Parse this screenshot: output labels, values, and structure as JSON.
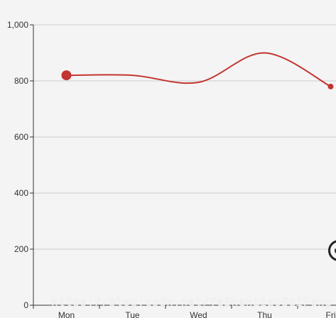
{
  "chart_data": {
    "type": "line",
    "categories": [
      "Mon",
      "Tue",
      "Wed",
      "Thu",
      "Fri"
    ],
    "series": [
      {
        "values": [
          820,
          820,
          795,
          900,
          780
        ],
        "color": "#c23531"
      }
    ],
    "y_ticks": [
      "0",
      "200",
      "400",
      "600",
      "800",
      "1,000"
    ],
    "ylim": [
      0,
      1000
    ],
    "smooth": true,
    "grid": true,
    "title": "",
    "xlabel": "",
    "ylabel": ""
  },
  "colors": {
    "background": "#f4f4f4",
    "grid": "#cccccc",
    "axis": "#333333",
    "series": "#c23531"
  },
  "watermark": "https://blog.csdn.net/YeShenLiaoSuiFeng",
  "corner_icon": "spinner-icon"
}
